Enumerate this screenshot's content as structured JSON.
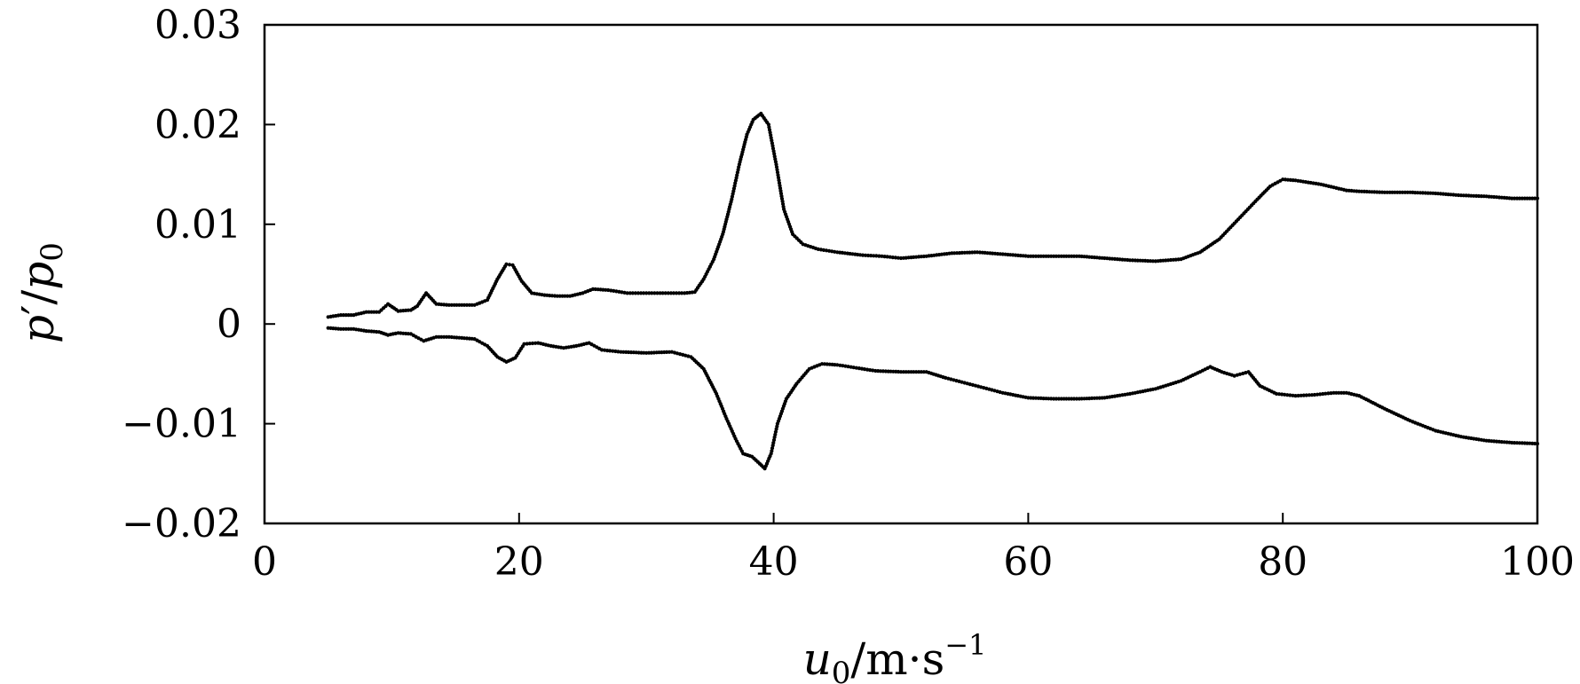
{
  "chart_data": {
    "type": "scatter",
    "xlabel": {
      "var": "u",
      "sub": "0",
      "unit": "/m·s",
      "sup": "−1"
    },
    "ylabel": {
      "var": "p",
      "prime": "′",
      "slash": "/",
      "var2": "p",
      "sub": "0"
    },
    "xlim": [
      0,
      100
    ],
    "ylim": [
      -0.02,
      0.03
    ],
    "xticks": [
      0,
      20,
      40,
      60,
      80,
      100
    ],
    "xtick_labels": [
      "0",
      "20",
      "40",
      "60",
      "80",
      "100"
    ],
    "yticks": [
      -0.02,
      -0.01,
      0,
      0.01,
      0.02,
      0.03
    ],
    "ytick_labels": [
      "−0.02",
      "−0.01",
      "0",
      "0.01",
      "0.02",
      "0.03"
    ],
    "grid": false,
    "marker_color": "#000000",
    "series": [
      {
        "points": [
          [
            5,
            0.0007
          ],
          [
            6,
            0.0009
          ],
          [
            7,
            0.0009
          ],
          [
            8,
            0.0012
          ],
          [
            9,
            0.0012
          ],
          [
            9.7,
            0.002
          ],
          [
            10.5,
            0.0013
          ],
          [
            11.5,
            0.0014
          ],
          [
            12,
            0.0018
          ],
          [
            12.7,
            0.0031
          ],
          [
            13.5,
            0.002
          ],
          [
            14.5,
            0.0019
          ],
          [
            15.5,
            0.0019
          ],
          [
            16.5,
            0.0019
          ],
          [
            17.5,
            0.0024
          ],
          [
            18.3,
            0.0045
          ],
          [
            19,
            0.006
          ],
          [
            19.5,
            0.0059
          ],
          [
            20.2,
            0.0043
          ],
          [
            21,
            0.0031
          ],
          [
            22,
            0.0029
          ],
          [
            23,
            0.0028
          ],
          [
            24,
            0.0028
          ],
          [
            25,
            0.0031
          ],
          [
            25.8,
            0.0035
          ],
          [
            27,
            0.0034
          ],
          [
            28.5,
            0.0031
          ],
          [
            30,
            0.0031
          ],
          [
            31.5,
            0.0031
          ],
          [
            33,
            0.0031
          ],
          [
            33.8,
            0.0032
          ],
          [
            34.5,
            0.0045
          ],
          [
            35.3,
            0.0065
          ],
          [
            36,
            0.009
          ],
          [
            36.7,
            0.0125
          ],
          [
            37.3,
            0.016
          ],
          [
            37.9,
            0.019
          ],
          [
            38.4,
            0.0205
          ],
          [
            39,
            0.0211
          ],
          [
            39.6,
            0.02
          ],
          [
            40.2,
            0.016
          ],
          [
            40.8,
            0.0115
          ],
          [
            41.5,
            0.009
          ],
          [
            42.3,
            0.008
          ],
          [
            43.5,
            0.0075
          ],
          [
            45,
            0.0072
          ],
          [
            47,
            0.0069
          ],
          [
            48.5,
            0.0068
          ],
          [
            50,
            0.0066
          ],
          [
            52,
            0.0068
          ],
          [
            54,
            0.0071
          ],
          [
            56,
            0.0072
          ],
          [
            58,
            0.007
          ],
          [
            60,
            0.0068
          ],
          [
            62,
            0.0068
          ],
          [
            64,
            0.0068
          ],
          [
            66,
            0.0066
          ],
          [
            68,
            0.0064
          ],
          [
            70,
            0.0063
          ],
          [
            72,
            0.0065
          ],
          [
            73.5,
            0.0072
          ],
          [
            75,
            0.0085
          ],
          [
            76.5,
            0.0105
          ],
          [
            78,
            0.0125
          ],
          [
            79,
            0.0138
          ],
          [
            80,
            0.0145
          ],
          [
            81,
            0.0144
          ],
          [
            82,
            0.0142
          ],
          [
            83,
            0.014
          ],
          [
            84,
            0.0137
          ],
          [
            85,
            0.0134
          ],
          [
            86,
            0.0133
          ],
          [
            88,
            0.0132
          ],
          [
            90,
            0.0132
          ],
          [
            92,
            0.0131
          ],
          [
            94,
            0.0129
          ],
          [
            96,
            0.0128
          ],
          [
            98,
            0.0126
          ],
          [
            100,
            0.0126
          ]
        ]
      },
      {
        "points": [
          [
            5,
            -0.0004
          ],
          [
            6,
            -0.0005
          ],
          [
            7,
            -0.0005
          ],
          [
            8,
            -0.0007
          ],
          [
            9,
            -0.0008
          ],
          [
            9.7,
            -0.0011
          ],
          [
            10.5,
            -0.0009
          ],
          [
            11.5,
            -0.001
          ],
          [
            12.5,
            -0.0017
          ],
          [
            13.5,
            -0.0013
          ],
          [
            14.5,
            -0.0013
          ],
          [
            15.5,
            -0.0014
          ],
          [
            16.5,
            -0.0015
          ],
          [
            17.5,
            -0.0022
          ],
          [
            18.3,
            -0.0033
          ],
          [
            19,
            -0.0038
          ],
          [
            19.7,
            -0.0034
          ],
          [
            20.4,
            -0.002
          ],
          [
            21.5,
            -0.0019
          ],
          [
            22.5,
            -0.0022
          ],
          [
            23.5,
            -0.0024
          ],
          [
            24.5,
            -0.0022
          ],
          [
            25.5,
            -0.0019
          ],
          [
            26.5,
            -0.0026
          ],
          [
            28,
            -0.0028
          ],
          [
            30,
            -0.0029
          ],
          [
            32,
            -0.0028
          ],
          [
            33.5,
            -0.0033
          ],
          [
            34.5,
            -0.0045
          ],
          [
            35.5,
            -0.007
          ],
          [
            36.3,
            -0.0095
          ],
          [
            37,
            -0.0115
          ],
          [
            37.6,
            -0.013
          ],
          [
            38.3,
            -0.0133
          ],
          [
            38.9,
            -0.014
          ],
          [
            39.3,
            -0.0145
          ],
          [
            39.8,
            -0.013
          ],
          [
            40.3,
            -0.01
          ],
          [
            41,
            -0.0075
          ],
          [
            41.8,
            -0.006
          ],
          [
            42.8,
            -0.0045
          ],
          [
            43.8,
            -0.004
          ],
          [
            45,
            -0.0041
          ],
          [
            46.5,
            -0.0044
          ],
          [
            48,
            -0.0047
          ],
          [
            50,
            -0.0048
          ],
          [
            52,
            -0.0048
          ],
          [
            53.5,
            -0.0054
          ],
          [
            55,
            -0.0059
          ],
          [
            56.5,
            -0.0064
          ],
          [
            58,
            -0.0069
          ],
          [
            60,
            -0.0074
          ],
          [
            62,
            -0.0075
          ],
          [
            64,
            -0.0075
          ],
          [
            66,
            -0.0074
          ],
          [
            68,
            -0.007
          ],
          [
            70,
            -0.0065
          ],
          [
            72,
            -0.0057
          ],
          [
            73.5,
            -0.0048
          ],
          [
            74.3,
            -0.0043
          ],
          [
            75.2,
            -0.0048
          ],
          [
            76.2,
            -0.0052
          ],
          [
            77.3,
            -0.0048
          ],
          [
            78.2,
            -0.0062
          ],
          [
            79.5,
            -0.007
          ],
          [
            81,
            -0.0072
          ],
          [
            82.5,
            -0.0071
          ],
          [
            84,
            -0.0069
          ],
          [
            85,
            -0.0069
          ],
          [
            86,
            -0.0072
          ],
          [
            88,
            -0.0085
          ],
          [
            90,
            -0.0097
          ],
          [
            92,
            -0.0107
          ],
          [
            94,
            -0.0113
          ],
          [
            96,
            -0.0117
          ],
          [
            98,
            -0.0119
          ],
          [
            100,
            -0.012
          ]
        ]
      }
    ]
  }
}
